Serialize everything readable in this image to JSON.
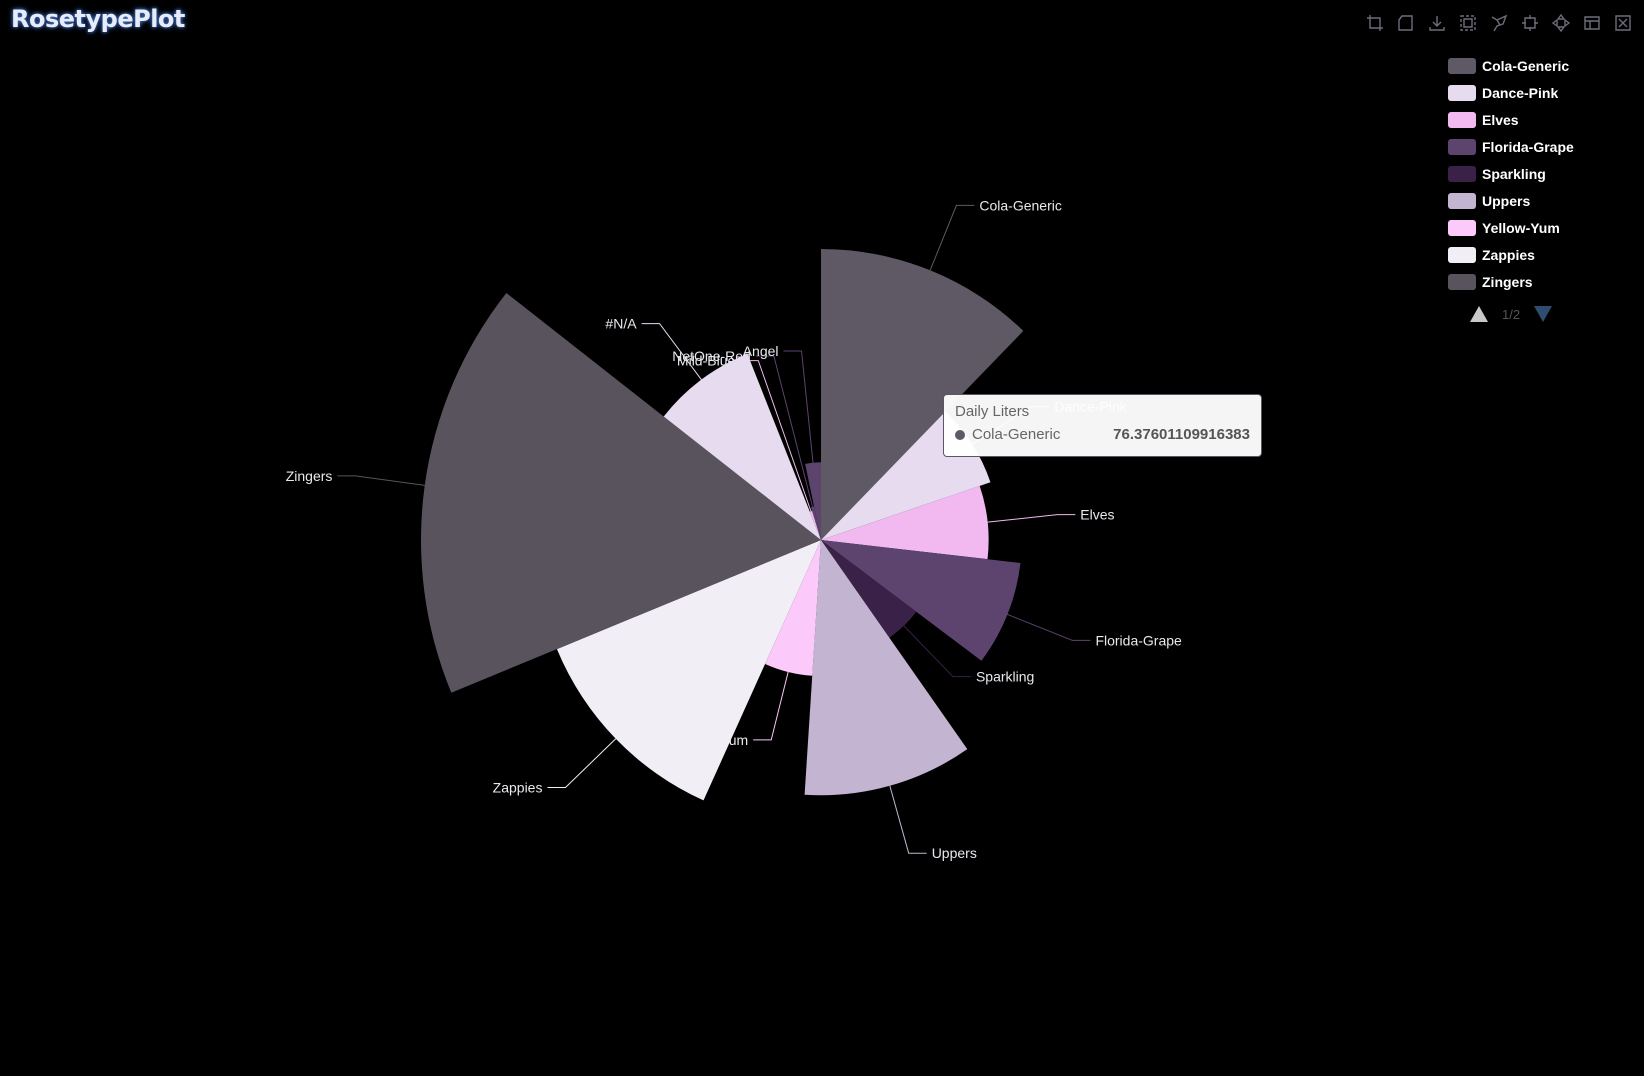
{
  "title": "RosetypePlot",
  "toolbox": {
    "icons": [
      "rect-select-icon",
      "polygon-select-icon",
      "save-image-icon",
      "zoom-icon",
      "lasso-icon",
      "zoom-reset-icon",
      "restore-icon",
      "data-view-icon",
      "clear-select-icon"
    ]
  },
  "legend": {
    "page_text": "1/2",
    "items": [
      {
        "label": "Cola-Generic",
        "color": "#5e5964"
      },
      {
        "label": "Dance-Pink",
        "color": "#e6dbef"
      },
      {
        "label": "Elves",
        "color": "#f1b9f0"
      },
      {
        "label": "Florida-Grape",
        "color": "#5c446f"
      },
      {
        "label": "Sparkling",
        "color": "#3a2148"
      },
      {
        "label": "Uppers",
        "color": "#c3b5d2"
      },
      {
        "label": "Yellow-Yum",
        "color": "#fbc9fa"
      },
      {
        "label": "Zappies",
        "color": "#f1eef5"
      },
      {
        "label": "Zingers",
        "color": "#59535e"
      }
    ]
  },
  "tooltip": {
    "title": "Daily Liters",
    "series": "Cola-Generic",
    "value": "76.37601109916383",
    "color": "#5e5964"
  },
  "chart_data": {
    "type": "pie",
    "rose_type": "radius",
    "series_name": "Daily Liters",
    "slices": [
      {
        "name": "Cola-Generic",
        "value": 76.376,
        "color": "#5e5964"
      },
      {
        "name": "Dance-Pink",
        "value": 47,
        "color": "#e6dbef"
      },
      {
        "name": "Elves",
        "value": 44,
        "color": "#f1b9f0"
      },
      {
        "name": "Florida-Grape",
        "value": 52.7,
        "color": "#5c446f"
      },
      {
        "name": "Sparkling",
        "value": 31.3,
        "color": "#3a2148"
      },
      {
        "name": "Uppers",
        "value": 67,
        "color": "#c3b5d2"
      },
      {
        "name": "Yellow-Yum",
        "value": 35.7,
        "color": "#fbc9fa"
      },
      {
        "name": "Zappies",
        "value": 75,
        "color": "#f1eef5"
      },
      {
        "name": "Zingers",
        "value": 105,
        "color": "#59535e"
      },
      {
        "name": "#N/A",
        "value": 52.5,
        "color": "#e6dbef"
      },
      {
        "name": "Mild-Blue",
        "value": 8,
        "color": "#f1b9f0"
      },
      {
        "name": "NetOne-Red",
        "value": 9,
        "color": "#5c446f"
      },
      {
        "name": "Angel",
        "value": 20.4,
        "color": "#5c446f"
      }
    ]
  }
}
